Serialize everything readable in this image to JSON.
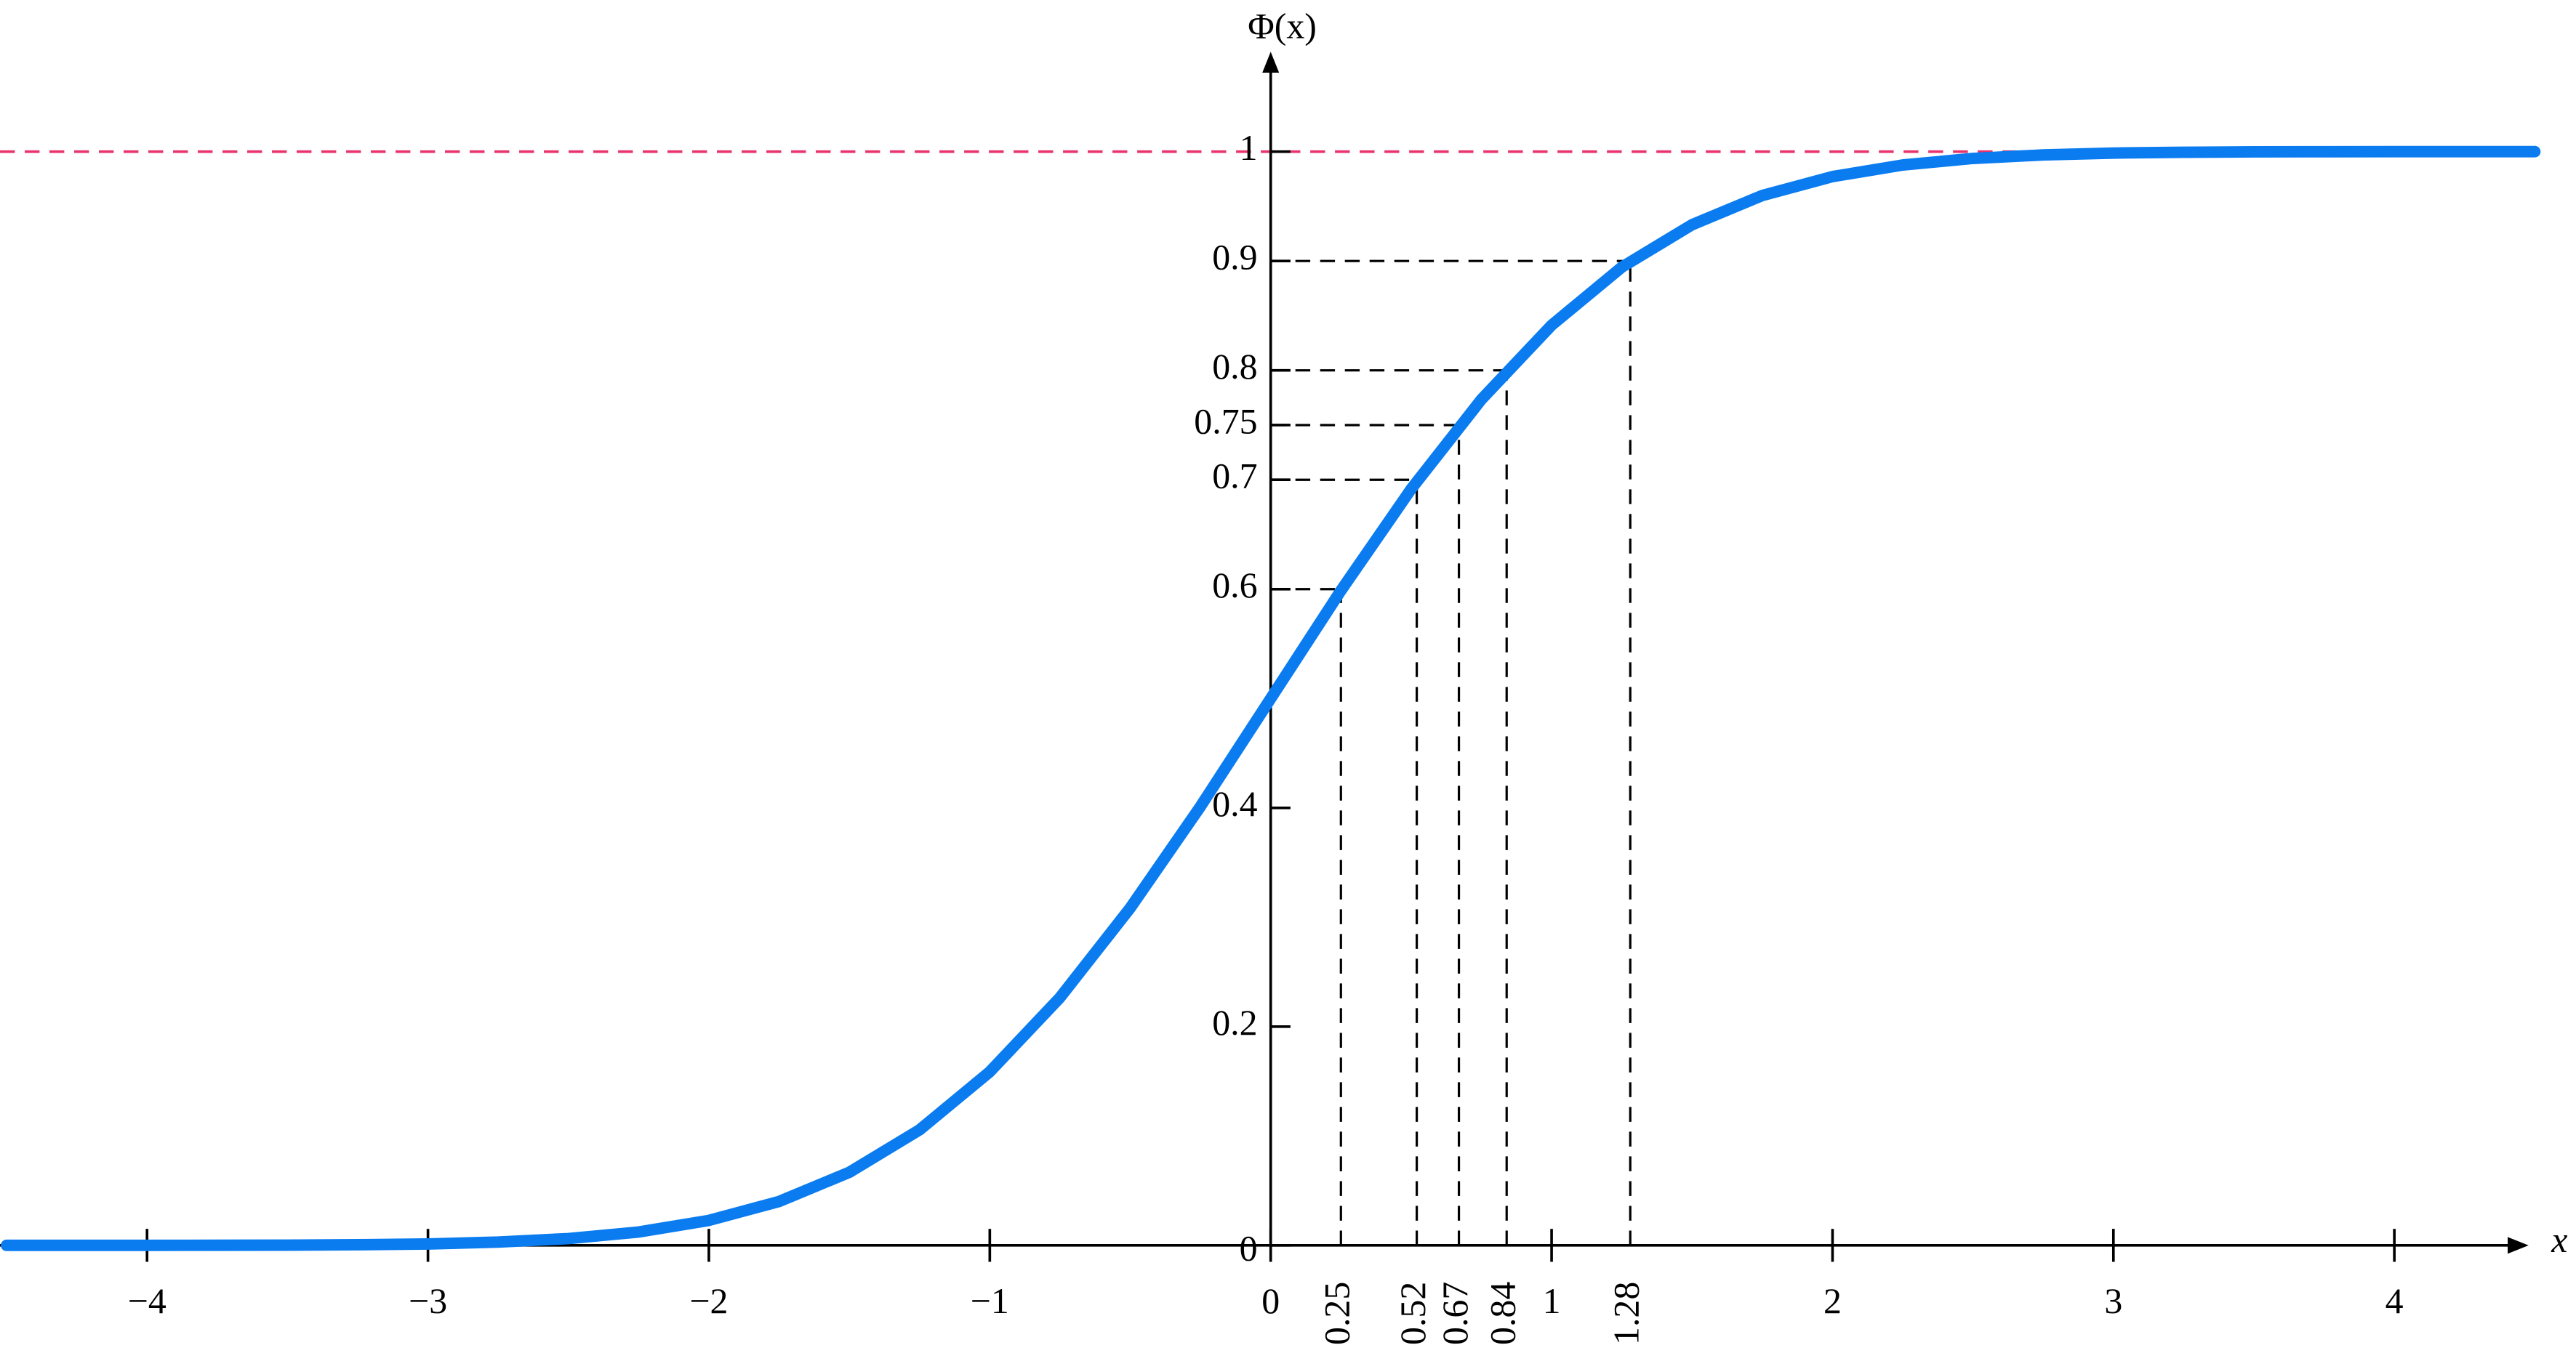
{
  "chart_data": {
    "type": "line",
    "y_label": "Φ(x)",
    "x_label": "x",
    "xlim": [
      -4.5,
      4.5
    ],
    "ylim": [
      0,
      1.1
    ],
    "xticks": [
      {
        "value": -4,
        "label": "−4"
      },
      {
        "value": -3,
        "label": "−3"
      },
      {
        "value": -2,
        "label": "−2"
      },
      {
        "value": -1,
        "label": "−1"
      },
      0,
      1,
      2,
      3,
      4
    ],
    "yticks": [
      0,
      0.2,
      0.4,
      0.6,
      0.7,
      0.75,
      0.8,
      0.9,
      1
    ],
    "series": [
      {
        "color": "#0a7cf0",
        "x": [
          -4.5,
          -4.25,
          -4,
          -3.75,
          -3.5,
          -3.25,
          -3,
          -2.75,
          -2.5,
          -2.25,
          -2,
          -1.75,
          -1.5,
          -1.25,
          -1,
          -0.75,
          -0.5,
          -0.25,
          0,
          0.25,
          0.5,
          0.75,
          1,
          1.25,
          1.5,
          1.75,
          2,
          2.25,
          2.5,
          2.75,
          3,
          3.25,
          3.5,
          3.75,
          4,
          4.25,
          4.5
        ],
        "values": [
          0,
          1e-05,
          3e-05,
          9e-05,
          0.0002,
          0.0006,
          0.0013,
          0.003,
          0.0062,
          0.0122,
          0.0228,
          0.0401,
          0.0668,
          0.1056,
          0.1587,
          0.2266,
          0.3085,
          0.4013,
          0.5,
          0.5987,
          0.6915,
          0.7734,
          0.8413,
          0.8944,
          0.9332,
          0.9599,
          0.9772,
          0.9878,
          0.9938,
          0.997,
          0.9987,
          0.9994,
          0.9998,
          0.99991,
          0.99997,
          0.99999,
          1
        ]
      }
    ],
    "quantiles": [
      {
        "x": 0.25,
        "p": 0.6
      },
      {
        "x": 0.52,
        "p": 0.7
      },
      {
        "x": 0.67,
        "p": 0.75
      },
      {
        "x": 0.84,
        "p": 0.8
      },
      {
        "x": 1.28,
        "p": 0.9
      }
    ],
    "reference_line": {
      "y": 1,
      "color": "#e8336b"
    }
  }
}
